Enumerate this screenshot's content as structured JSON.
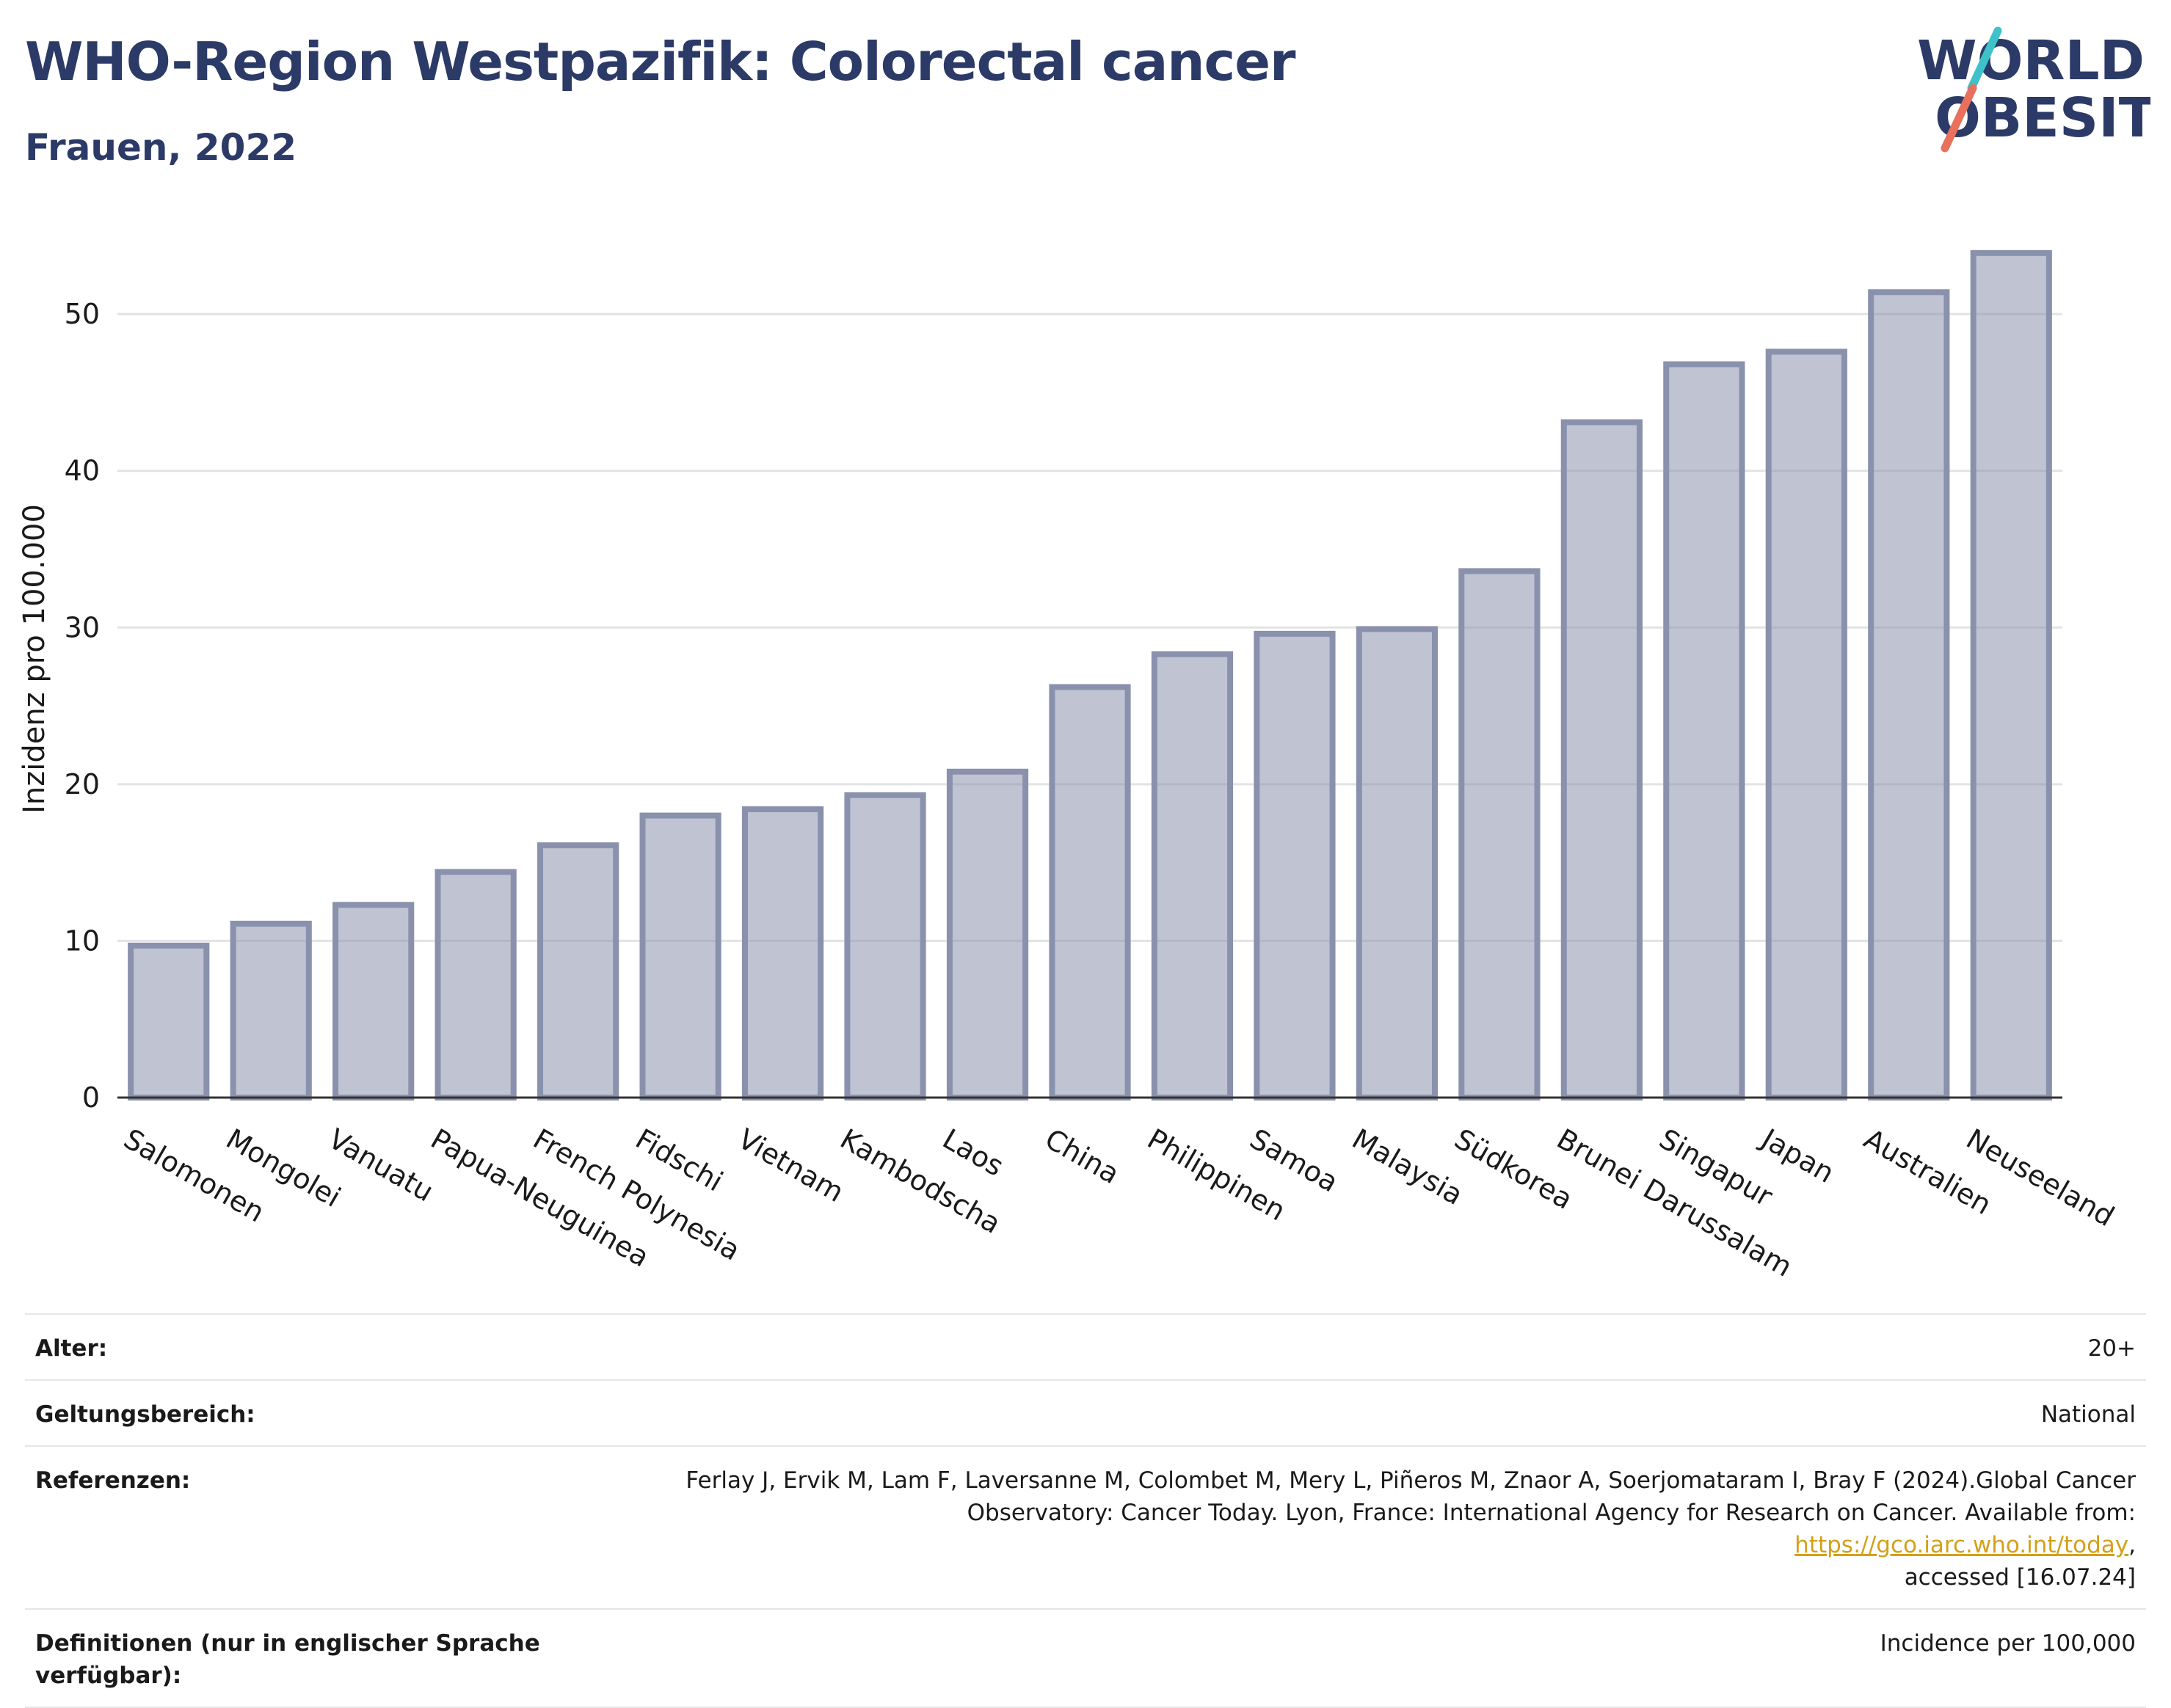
{
  "header": {
    "title": "WHO-Region Westpazifik: Colorectal cancer",
    "subtitle": "Frauen, 2022"
  },
  "logo": {
    "line1": "WORLD",
    "line2": "OBESITY",
    "accent_colors": [
      "#3ec1c9",
      "#e8705c"
    ]
  },
  "chart_data": {
    "type": "bar",
    "categories": [
      "Salomonen",
      "Mongolei",
      "Vanuatu",
      "Papua-Neuguinea",
      "French Polynesia",
      "Fidschi",
      "Vietnam",
      "Kambodscha",
      "Laos",
      "China",
      "Philippinen",
      "Samoa",
      "Malaysia",
      "Südkorea",
      "Brunei Darussalam",
      "Singapur",
      "Japan",
      "Australien",
      "Neuseeland"
    ],
    "values": [
      9.7,
      11.1,
      12.3,
      14.4,
      16.1,
      18.0,
      18.4,
      19.3,
      20.8,
      26.2,
      28.3,
      29.6,
      29.9,
      33.6,
      43.1,
      46.8,
      47.6,
      51.4,
      53.9
    ],
    "ylabel": "Inzidenz pro 100.000",
    "yticks": [
      0,
      10,
      20,
      30,
      40,
      50
    ],
    "ylim": [
      0,
      56
    ],
    "grid": true,
    "bar_color": "#8a91ad"
  },
  "info": {
    "rows": [
      {
        "label": "Alter:",
        "value": "20+"
      },
      {
        "label": "Geltungsbereich:",
        "value": "National"
      }
    ],
    "references": {
      "label": "Referenzen:",
      "line1": "Ferlay J, Ervik M, Lam F, Laversanne M, Colombet M, Mery L, Piñeros M, Znaor A, Soerjomataram I, Bray F (2024).Global Cancer",
      "line2_prefix": "Observatory: Cancer Today. Lyon, France: International Agency for Research on Cancer. Available from: ",
      "link": "https://gco.iarc.who.int/today",
      "line2_suffix": ",",
      "line3": "accessed [16.07.24]"
    },
    "definitions": {
      "label": "Definitionen (nur in englischer Sprache verfügbar):",
      "value": "Incidence per 100,000"
    }
  }
}
